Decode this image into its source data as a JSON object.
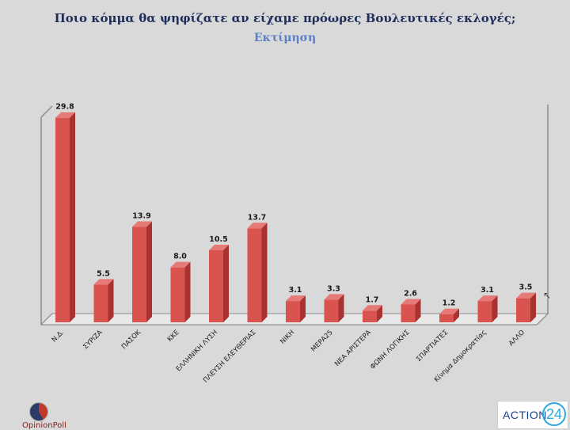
{
  "chart_data": {
    "type": "bar",
    "title": "Ποιο κόμμα θα ψηφίζατε αν είχαμε πρόωρες Βουλευτικές εκλογές;",
    "subtitle": "Εκτίμηση",
    "categories": [
      "Ν.Δ.",
      "ΣΥΡΙΖΑ",
      "ΠΑΣΟΚ",
      "ΚΚΕ",
      "ΕΛΛΗΝΙΚΗ ΛΥΣΗ",
      "ΠΛΕΥΣΗ ΕΛΕΥΘΕΡΙΑΣ",
      "ΝΙΚΗ",
      "ΜΕΡΑ25",
      "ΝΕΑ ΑΡΙΣΤΕΡΑ",
      "ΦΩΝΗ ΛΟΓΙΚΗΣ",
      "ΣΠΑΡΤΙΑΤΕΣ",
      "Κίνημα Δημοκρατίας",
      "ΑΛΛΟ"
    ],
    "values": [
      29.8,
      5.5,
      13.9,
      8.0,
      10.5,
      13.7,
      3.1,
      3.3,
      1.7,
      2.6,
      1.2,
      3.1,
      3.5
    ],
    "value_labels": [
      "29.8",
      "5.5",
      "13.9",
      "8.0",
      "10.5",
      "13.7",
      "3.1",
      "3.3",
      "1.7",
      "2.6",
      "1.2",
      "3.1",
      "3.5"
    ],
    "ylim": [
      0,
      30
    ],
    "grid": false,
    "bar_color": "#d9534f"
  },
  "logos": {
    "left_text": "OpinionPoll",
    "right_text": "ACTION",
    "right_number": "24"
  },
  "colors": {
    "background": "#d9d9d9",
    "title": "#1f2d5a",
    "subtitle": "#5b7fc9"
  }
}
